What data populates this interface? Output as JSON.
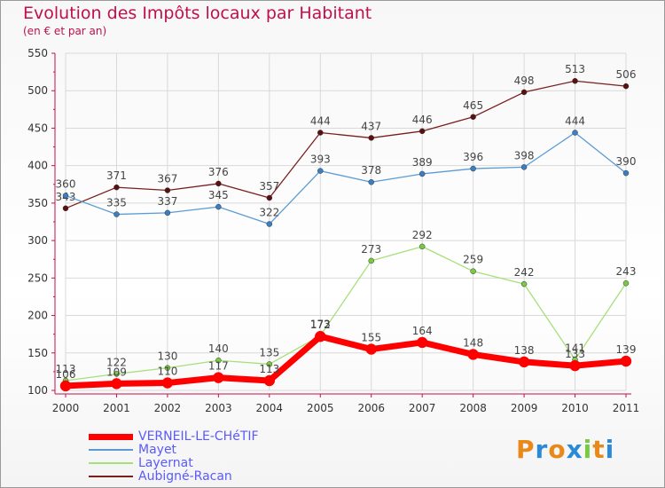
{
  "header": {
    "title": "Evolution des Impôts locaux par Habitant",
    "subtitle": "(en € et par an)"
  },
  "colors": {
    "title": "#c0104c",
    "grid": "#d9d9d9",
    "axis": "#c0104c",
    "legend_text": "#5a5aff"
  },
  "brand": {
    "letters": [
      "P",
      "r",
      "o",
      "x",
      "i",
      "t",
      "i"
    ],
    "colors": [
      "#e8891a",
      "#2a8ad8",
      "#e8891a",
      "#2a8ad8",
      "#7ac943",
      "#e8891a",
      "#2a8ad8"
    ]
  },
  "chart_data": {
    "type": "line",
    "title": "Evolution des Impôts locaux par Habitant",
    "subtitle": "(en € et par an)",
    "xlabel": "",
    "ylabel": "",
    "x": [
      "2000",
      "2001",
      "2002",
      "2003",
      "2004",
      "2005",
      "2006",
      "2007",
      "2008",
      "2009",
      "2010",
      "2011"
    ],
    "ylim": [
      100,
      550
    ],
    "yticks": [
      100,
      150,
      200,
      250,
      300,
      350,
      400,
      450,
      500,
      550
    ],
    "grid": true,
    "legend_position": "bottom-left",
    "series": [
      {
        "name": "Aubigné-Racan",
        "color": "#7a1f1f",
        "marker": "#5a1010",
        "width": 1.3,
        "values": [
          343,
          371,
          367,
          376,
          357,
          444,
          437,
          446,
          465,
          498,
          513,
          506
        ]
      },
      {
        "name": "Mayet",
        "color": "#5b9bd5",
        "marker": "#3a7fc4",
        "width": 1.3,
        "values": [
          360,
          335,
          337,
          345,
          322,
          393,
          378,
          389,
          396,
          398,
          444,
          390
        ]
      },
      {
        "name": "Layernat",
        "color": "#a6e07a",
        "marker": "#7ac943",
        "width": 1.3,
        "values": [
          113,
          122,
          130,
          140,
          135,
          173,
          273,
          292,
          259,
          242,
          141,
          243
        ]
      },
      {
        "name": "VERNEIL-LE-CHéTIF",
        "color": "#ff0000",
        "marker": "#ff0000",
        "width": 7,
        "values": [
          106,
          109,
          110,
          117,
          113,
          172,
          155,
          164,
          148,
          138,
          133,
          139
        ]
      }
    ],
    "labels": {
      "Aubigné-Racan": [
        "343",
        "371",
        "367",
        "376",
        "357",
        "444",
        "437",
        "446",
        "465",
        "498",
        "513",
        "506"
      ],
      "Mayet": [
        "360",
        "335",
        "337",
        "345",
        "322",
        "393",
        "378",
        "389",
        "396",
        "398",
        "444",
        "390"
      ],
      "Layernat": [
        "113",
        "122",
        "130",
        "140",
        "135",
        "173",
        "273",
        "292",
        "259",
        "242",
        "141",
        "243"
      ],
      "VERNEIL-LE-CHéTIF": [
        "106",
        "109",
        "110",
        "117",
        "113",
        "172",
        "155",
        "164",
        "148",
        "138",
        "133",
        "139"
      ]
    }
  },
  "legend": {
    "items": [
      {
        "label": "VERNEIL-LE-CHéTIF",
        "color": "#ff0000",
        "width": 7
      },
      {
        "label": "Mayet",
        "color": "#5b9bd5",
        "width": 2
      },
      {
        "label": "Layernat",
        "color": "#a6e07a",
        "width": 2
      },
      {
        "label": "Aubigné-Racan",
        "color": "#7a1f1f",
        "width": 2
      }
    ]
  }
}
